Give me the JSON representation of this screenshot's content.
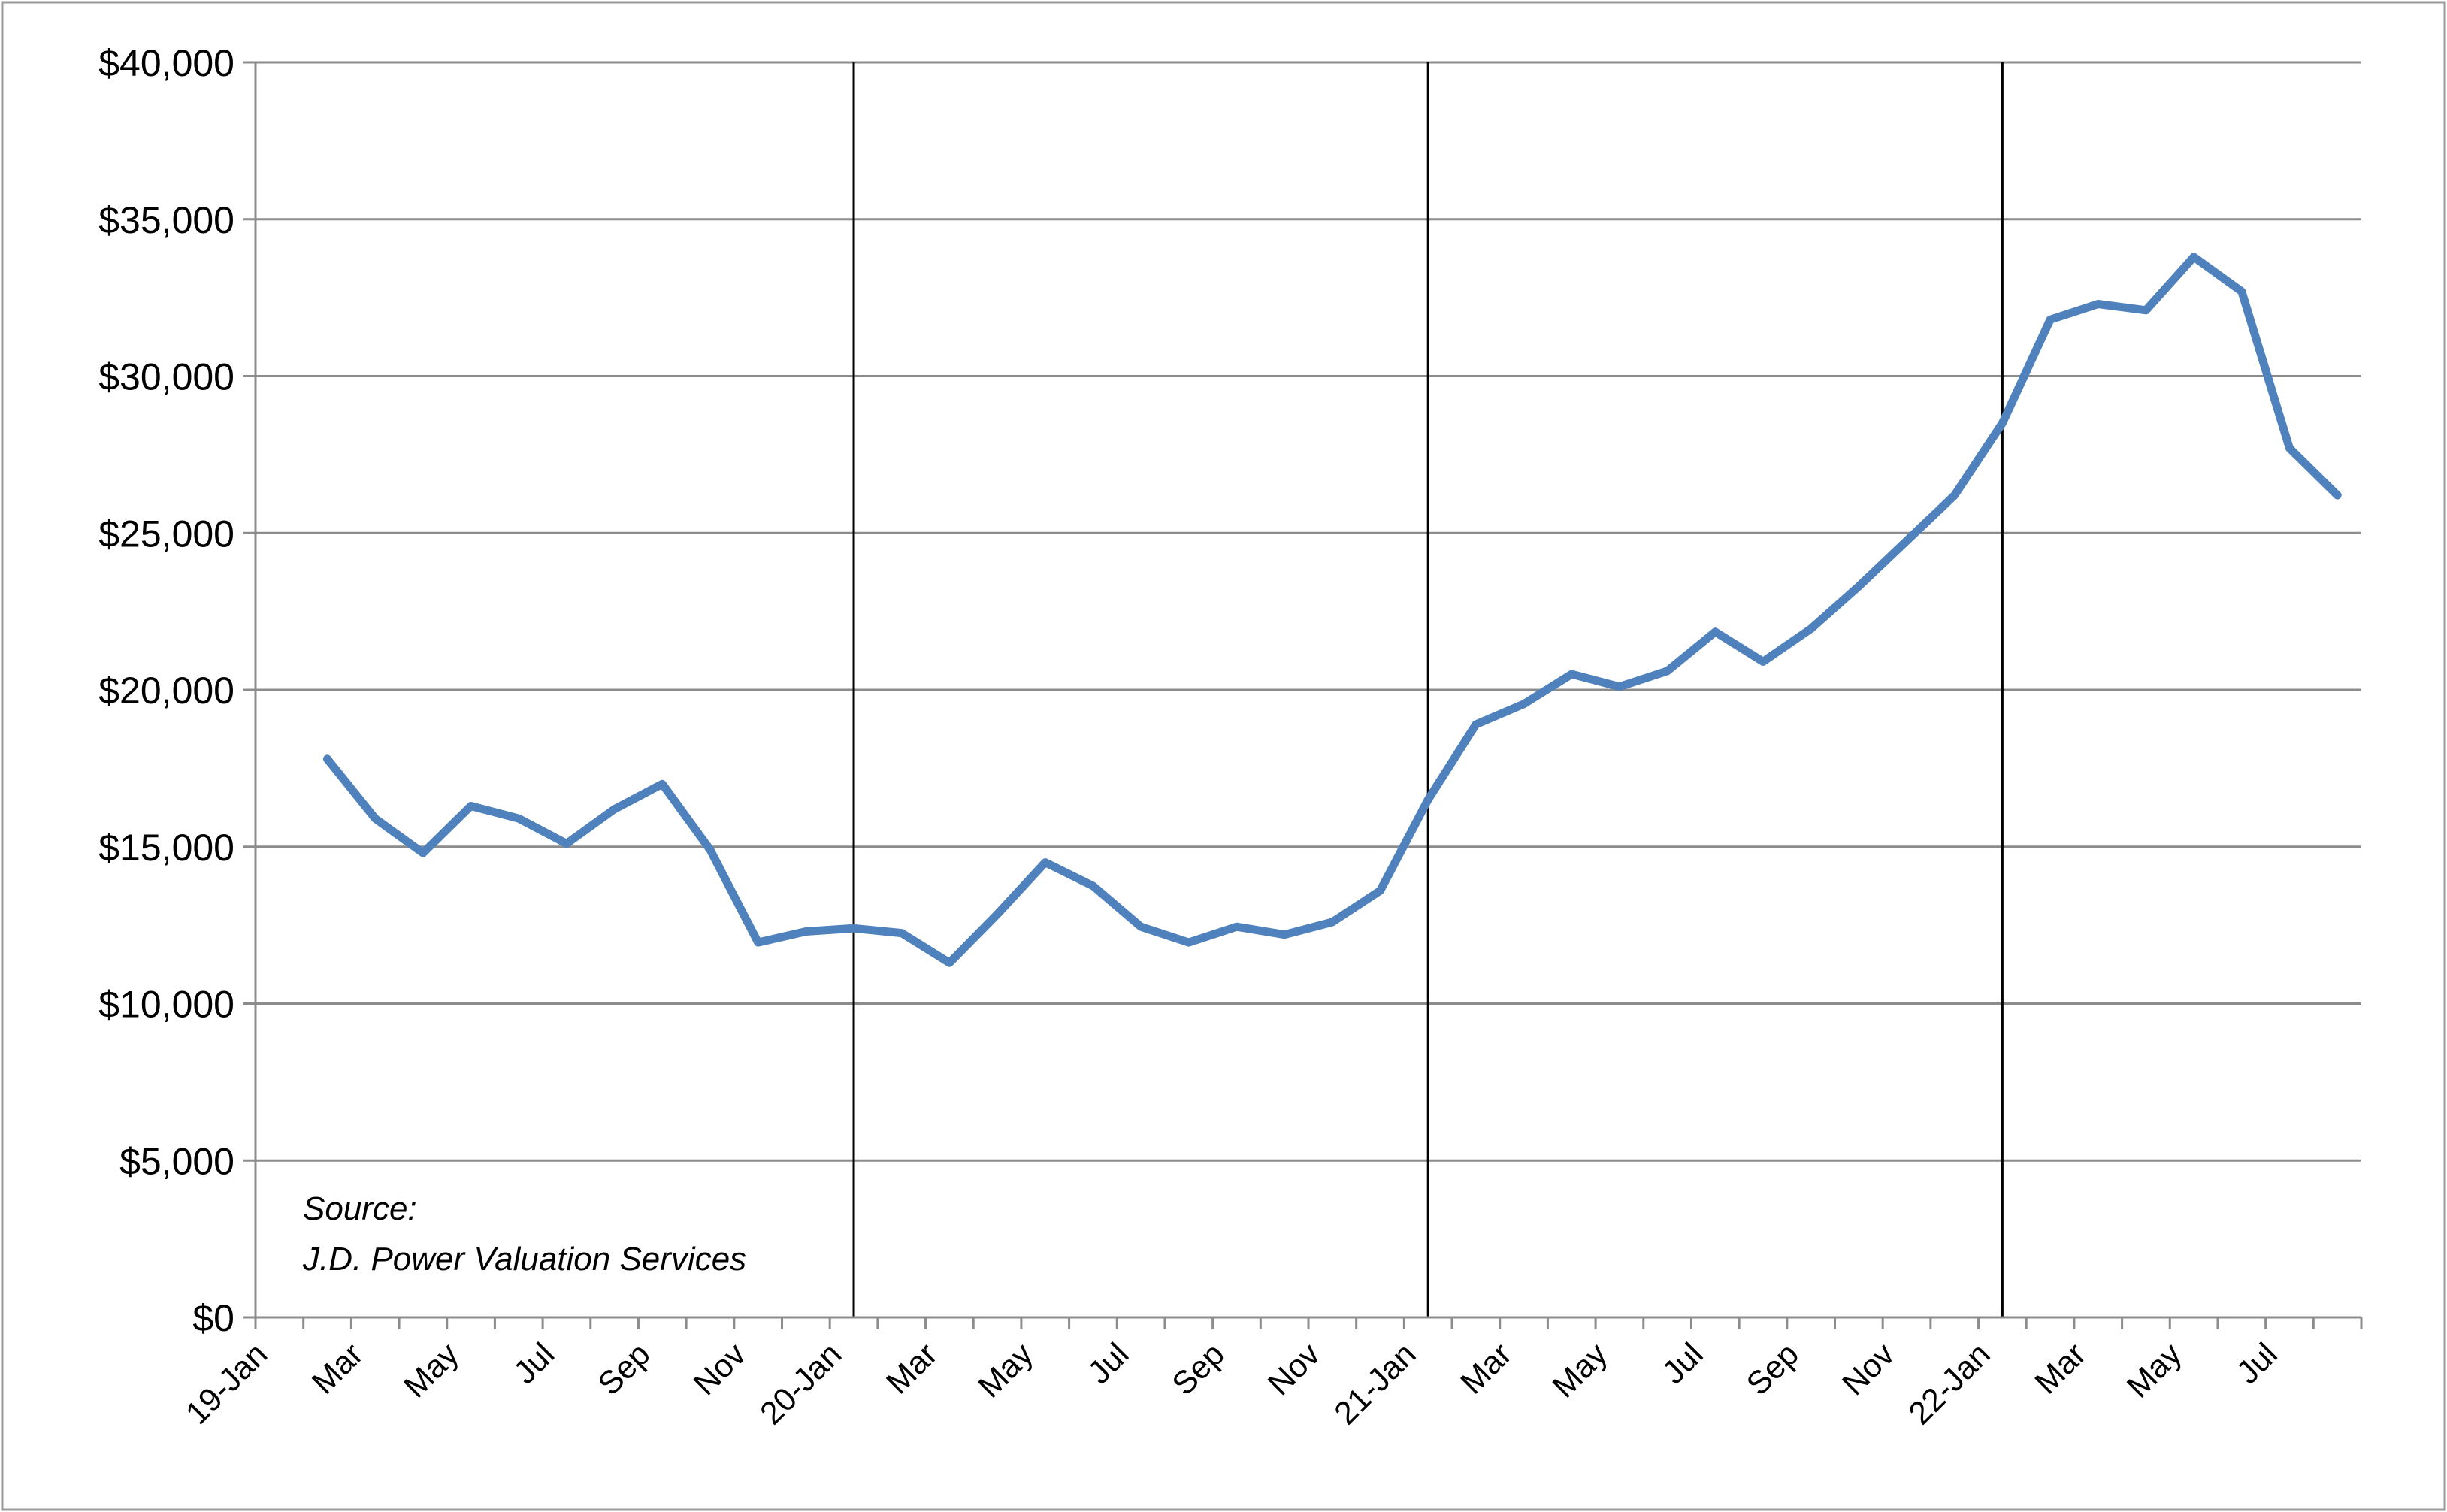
{
  "chart_data": {
    "type": "line",
    "title": "",
    "xlabel": "",
    "ylabel": "",
    "ylim": [
      0,
      40000
    ],
    "y_ticks": [
      "$0",
      "$5,000",
      "$10,000",
      "$15,000",
      "$20,000",
      "$25,000",
      "$30,000",
      "$35,000",
      "$40,000"
    ],
    "x_tick_labels": [
      "19-Jan",
      "Mar",
      "May",
      "Jul",
      "Sep",
      "Nov",
      "20-Jan",
      "Mar",
      "May",
      "Jul",
      "Sep",
      "Nov",
      "21-Jan",
      "Mar",
      "May",
      "Jul",
      "Sep",
      "Nov",
      "22-Jan",
      "Mar",
      "May",
      "Jul"
    ],
    "x": [
      "2019-01",
      "2019-02",
      "2019-03",
      "2019-04",
      "2019-05",
      "2019-06",
      "2019-07",
      "2019-08",
      "2019-09",
      "2019-10",
      "2019-11",
      "2019-12",
      "2020-01",
      "2020-02",
      "2020-03",
      "2020-04",
      "2020-05",
      "2020-06",
      "2020-07",
      "2020-08",
      "2020-09",
      "2020-10",
      "2020-11",
      "2020-12",
      "2021-01",
      "2021-02",
      "2021-03",
      "2021-04",
      "2021-05",
      "2021-06",
      "2021-07",
      "2021-08",
      "2021-09",
      "2021-10",
      "2021-11",
      "2021-12",
      "2022-01",
      "2022-02",
      "2022-03",
      "2022-04",
      "2022-05",
      "2022-06",
      "2022-07",
      "2022-08"
    ],
    "series": [
      {
        "values": [
          null,
          17800,
          15900,
          14800,
          16300,
          15900,
          15100,
          16200,
          17000,
          14900,
          11950,
          12300,
          12400,
          12250,
          11300,
          12850,
          14500,
          13750,
          12450,
          11950,
          12450,
          12200,
          12600,
          13600,
          16500,
          18900,
          19550,
          20500,
          20100,
          20600,
          21850,
          20900,
          21950,
          23300,
          24750,
          26200,
          28500,
          31800,
          32300,
          32100,
          33800,
          32700,
          27700,
          26200
        ],
        "color": "#4f81bd"
      }
    ],
    "vertical_lines_at": [
      "2020-01",
      "2021-01",
      "2022-01"
    ],
    "grid": true,
    "legend": "none",
    "annotation": [
      "Source:",
      "J.D. Power Valuation Services"
    ]
  }
}
